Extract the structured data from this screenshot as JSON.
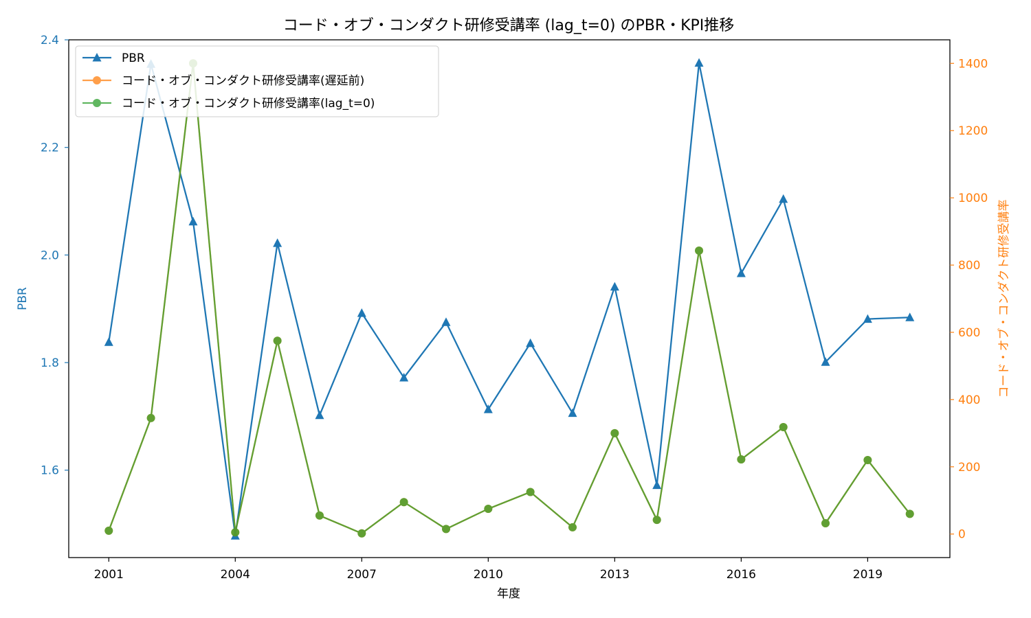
{
  "chart_data": {
    "type": "line",
    "title": "コード・オブ・コンダクト研修受講率 (lag_t=0) のPBR・KPI推移",
    "xlabel": "年度",
    "ylabel_left": "PBR",
    "ylabel_right": "コード・オブ・コンダクト研修受講率",
    "x": [
      2001,
      2002,
      2003,
      2004,
      2005,
      2006,
      2007,
      2008,
      2009,
      2010,
      2011,
      2012,
      2013,
      2014,
      2015,
      2016,
      2017,
      2018,
      2019,
      2020
    ],
    "x_ticks": [
      "2001",
      "2004",
      "2007",
      "2010",
      "2013",
      "2016",
      "2019"
    ],
    "y_left_ticks": [
      "1.6",
      "1.8",
      "2.0",
      "2.2",
      "2.4"
    ],
    "y_right_ticks": [
      "0",
      "200",
      "400",
      "600",
      "800",
      "1000",
      "1200",
      "1400"
    ],
    "xlim": [
      2000.05,
      2020.95
    ],
    "ylim_left": [
      1.4375,
      2.4
    ],
    "ylim_right": [
      -70,
      1470
    ],
    "series": [
      {
        "name": "PBR",
        "axis": "left",
        "color": "#1f77b4",
        "marker": "triangle",
        "values": [
          1.838,
          2.355,
          2.062,
          1.478,
          2.022,
          1.702,
          1.892,
          1.772,
          1.875,
          1.713,
          1.836,
          1.706,
          1.941,
          1.572,
          2.357,
          1.966,
          2.104,
          1.801,
          1.881,
          1.884
        ]
      },
      {
        "name": "コード・オブ・コンダクト研修受講率(遅延前)",
        "axis": "right",
        "color": "#ff7f0e",
        "marker": "circle",
        "values": [
          10,
          345,
          1400,
          5,
          575,
          55,
          2,
          95,
          15,
          75,
          125,
          20,
          300,
          42,
          843,
          222,
          318,
          32,
          220,
          60
        ]
      },
      {
        "name": "コード・オブ・コンダクト研修受講率(lag_t=0)",
        "axis": "right",
        "color": "#2ca02c",
        "marker": "circle",
        "values": [
          10,
          345,
          1400,
          5,
          575,
          55,
          2,
          95,
          15,
          75,
          125,
          20,
          300,
          42,
          843,
          222,
          318,
          32,
          220,
          60
        ]
      }
    ],
    "legend_position": "top-left",
    "grid": false
  }
}
